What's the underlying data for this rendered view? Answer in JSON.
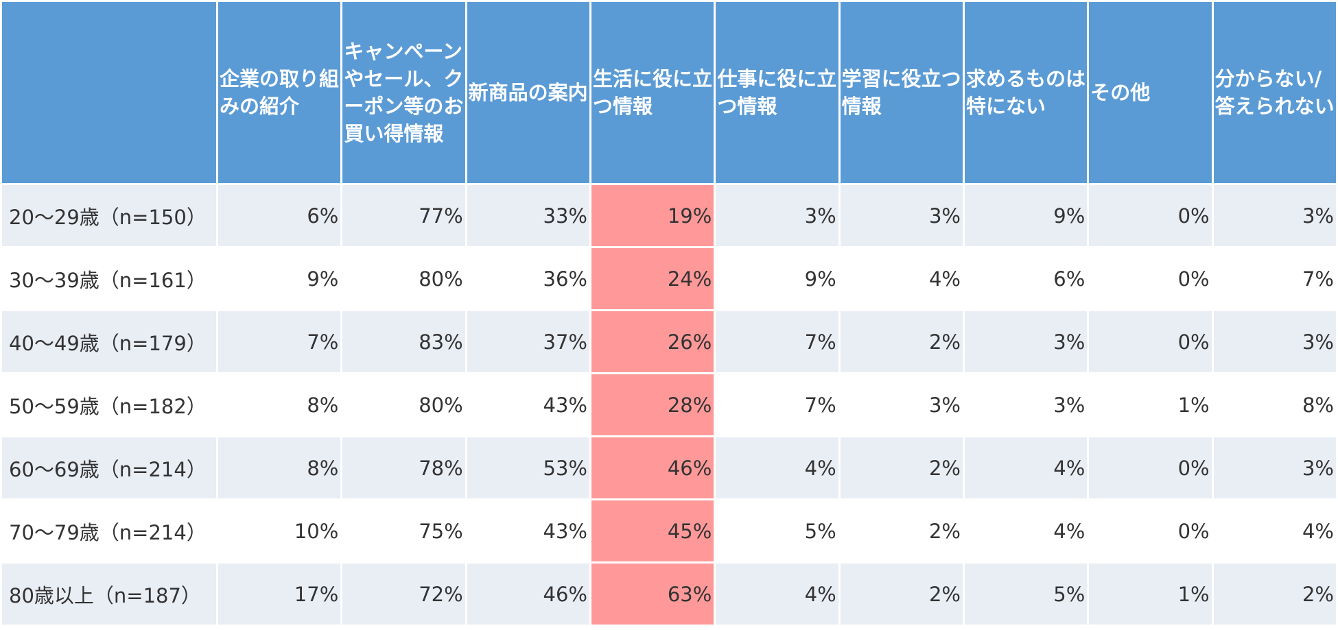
{
  "chart_data": {
    "type": "table",
    "columns": [
      "",
      "企業の取り組みの紹介",
      "キャンペーンやセール、クーポン等のお買い得情報",
      "新商品の案内",
      "生活に役に立つ情報",
      "仕事に役に立つ情報",
      "学習に役立つ情報",
      "求めるものは特にない",
      "その他",
      "分からない/答えられない"
    ],
    "rows": [
      {
        "label": "20～29歳（n=150）",
        "values": [
          "6%",
          "77%",
          "33%",
          "19%",
          "3%",
          "3%",
          "9%",
          "0%",
          "3%"
        ]
      },
      {
        "label": "30～39歳（n=161）",
        "values": [
          "9%",
          "80%",
          "36%",
          "24%",
          "9%",
          "4%",
          "6%",
          "0%",
          "7%"
        ]
      },
      {
        "label": "40～49歳（n=179）",
        "values": [
          "7%",
          "83%",
          "37%",
          "26%",
          "7%",
          "2%",
          "3%",
          "0%",
          "3%"
        ]
      },
      {
        "label": "50～59歳（n=182）",
        "values": [
          "8%",
          "80%",
          "43%",
          "28%",
          "7%",
          "3%",
          "3%",
          "1%",
          "8%"
        ]
      },
      {
        "label": "60～69歳（n=214）",
        "values": [
          "8%",
          "78%",
          "53%",
          "46%",
          "4%",
          "2%",
          "4%",
          "0%",
          "3%"
        ]
      },
      {
        "label": "70～79歳（n=214）",
        "values": [
          "10%",
          "75%",
          "43%",
          "45%",
          "5%",
          "2%",
          "4%",
          "0%",
          "4%"
        ]
      },
      {
        "label": "80歳以上（n=187）",
        "values": [
          "17%",
          "72%",
          "46%",
          "63%",
          "4%",
          "2%",
          "5%",
          "1%",
          "2%"
        ]
      }
    ],
    "highlight_column": 4
  },
  "colors": {
    "header_bg": "#5b9bd5",
    "header_text": "#ffffff",
    "row_band": "#e9edf4",
    "row_plain": "#ffffff",
    "highlight": "#ff9999",
    "body_text": "#333333"
  }
}
